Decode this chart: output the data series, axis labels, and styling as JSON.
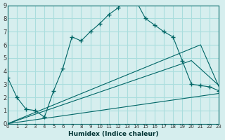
{
  "xlabel": "Humidex (Indice chaleur)",
  "bg_color": "#d6eeee",
  "grid_color": "#aadddd",
  "line_color": "#006666",
  "xlim": [
    0,
    23
  ],
  "ylim": [
    0,
    9
  ],
  "xticks": [
    0,
    1,
    2,
    3,
    4,
    5,
    6,
    7,
    8,
    9,
    10,
    11,
    12,
    13,
    14,
    15,
    16,
    17,
    18,
    19,
    20,
    21,
    22,
    23
  ],
  "yticks": [
    0,
    1,
    2,
    3,
    4,
    5,
    6,
    7,
    8,
    9
  ],
  "line1_x": [
    0,
    1,
    2,
    3,
    4,
    5,
    6,
    7,
    8,
    9,
    10,
    11,
    12,
    13,
    14,
    15,
    16,
    17,
    18,
    19,
    20,
    21,
    22,
    23
  ],
  "line1_y": [
    3.5,
    2.0,
    1.1,
    1.0,
    0.5,
    2.5,
    4.2,
    6.6,
    6.3,
    7.0,
    7.6,
    8.3,
    8.8,
    9.5,
    9.3,
    8.0,
    7.5,
    7.0,
    6.6,
    4.8,
    3.0,
    2.9,
    2.8,
    2.5
  ],
  "line2_x": [
    0,
    23
  ],
  "line2_y": [
    0,
    2.3
  ],
  "line3_x": [
    0,
    20,
    23
  ],
  "line3_y": [
    0,
    4.8,
    2.9
  ],
  "line4_x": [
    0,
    21,
    23
  ],
  "line4_y": [
    0,
    6.0,
    2.8
  ]
}
